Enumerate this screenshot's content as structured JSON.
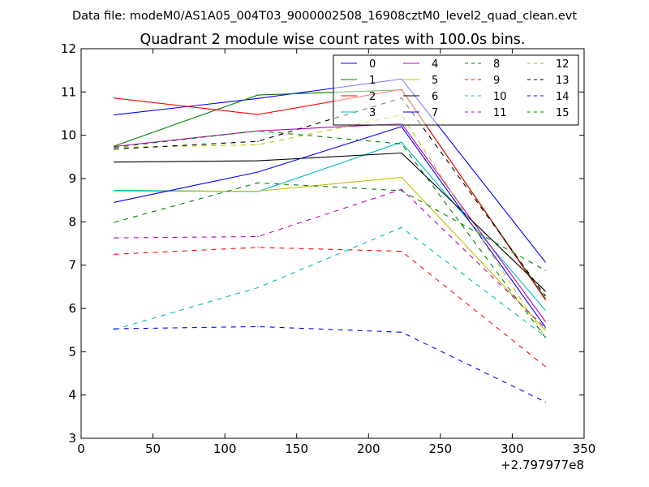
{
  "chart_data": {
    "type": "line",
    "suptitle": "Data file: modeM0/AS1A05_004T03_9000002508_16908cztM0_level2_quad_clean.evt",
    "title": "Quadrant 2 module wise count rates with 100.0s bins.",
    "xlabel": "",
    "ylabel": "",
    "x_offset_label": "+2.797977e8",
    "xlim": [
      0,
      350
    ],
    "ylim": [
      3,
      12
    ],
    "xticks": [
      "0",
      "50",
      "100",
      "150",
      "200",
      "250",
      "300",
      "350"
    ],
    "yticks": [
      "3",
      "4",
      "5",
      "6",
      "7",
      "8",
      "9",
      "10",
      "11",
      "12"
    ],
    "legend_position": "top-right",
    "x": [
      23,
      123,
      223,
      323
    ],
    "series": [
      {
        "name": "0",
        "color": "#0000ff",
        "style": "solid",
        "values": [
          10.47,
          10.85,
          11.3,
          7.07
        ]
      },
      {
        "name": "1",
        "color": "#008000",
        "style": "solid",
        "values": [
          9.75,
          10.93,
          11.05,
          6.23
        ]
      },
      {
        "name": "2",
        "color": "#ff0000",
        "style": "solid",
        "values": [
          10.86,
          10.48,
          11.06,
          6.2
        ]
      },
      {
        "name": "3",
        "color": "#00bfbf",
        "style": "solid",
        "values": [
          8.73,
          8.7,
          9.84,
          5.96
        ]
      },
      {
        "name": "4",
        "color": "#bf00bf",
        "style": "solid",
        "values": [
          9.74,
          10.1,
          10.27,
          5.7
        ]
      },
      {
        "name": "5",
        "color": "#bfbf00",
        "style": "solid",
        "values": [
          8.7,
          8.71,
          9.03,
          5.5
        ]
      },
      {
        "name": "6",
        "color": "#000000",
        "style": "solid",
        "values": [
          9.38,
          9.41,
          9.59,
          6.4
        ]
      },
      {
        "name": "7",
        "color": "#0000ff",
        "style": "solid",
        "values": [
          8.45,
          9.15,
          10.2,
          5.57
        ]
      },
      {
        "name": "8",
        "color": "#008000",
        "style": "dashed",
        "values": [
          7.99,
          8.9,
          8.72,
          6.88
        ]
      },
      {
        "name": "9",
        "color": "#ff0000",
        "style": "dashed",
        "values": [
          7.25,
          7.41,
          7.32,
          4.66
        ]
      },
      {
        "name": "10",
        "color": "#00bfbf",
        "style": "dashed",
        "values": [
          5.51,
          6.48,
          7.87,
          5.35
        ]
      },
      {
        "name": "11",
        "color": "#bf00bf",
        "style": "dashed",
        "values": [
          7.63,
          7.66,
          8.75,
          5.55
        ]
      },
      {
        "name": "12",
        "color": "#bfbf00",
        "style": "dashed",
        "values": [
          9.72,
          9.78,
          10.47,
          5.34
        ]
      },
      {
        "name": "13",
        "color": "#000000",
        "style": "dashed",
        "values": [
          9.68,
          9.86,
          10.86,
          6.29
        ]
      },
      {
        "name": "14",
        "color": "#0000ff",
        "style": "dashed",
        "values": [
          5.53,
          5.58,
          5.45,
          3.84
        ]
      },
      {
        "name": "15",
        "color": "#008000",
        "style": "dashed",
        "values": [
          9.72,
          10.1,
          9.8,
          5.33
        ]
      }
    ]
  }
}
